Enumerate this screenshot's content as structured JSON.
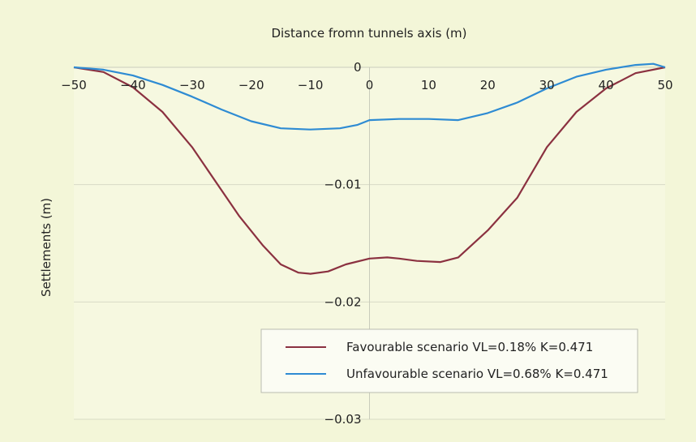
{
  "chart_data": {
    "type": "line",
    "title": "Distance fromn tunnels axis (m)",
    "xlabel": "Distance fromn tunnels axis (m)",
    "ylabel": "Settlements (m)",
    "xlim": [
      -50,
      50
    ],
    "ylim": [
      -0.03,
      0
    ],
    "x_ticks": [
      -50,
      -40,
      -30,
      -20,
      -10,
      0,
      10,
      20,
      30,
      40,
      50
    ],
    "y_ticks": [
      0,
      -0.01,
      -0.02,
      -0.03
    ],
    "y_tick_labels": [
      "0",
      "−0.01",
      "−0.02",
      "−0.03"
    ],
    "grid": true,
    "legend_position": "bottom-right",
    "series": [
      {
        "name": "Favourable scenario VL=0.18% K=0.471",
        "color": "#8b3140",
        "x": [
          -50,
          -45,
          -40,
          -35,
          -30,
          -25,
          -22,
          -18,
          -15,
          -12,
          -10,
          -7,
          -4,
          0,
          3,
          5,
          8,
          12,
          15,
          20,
          25,
          30,
          35,
          40,
          45,
          50
        ],
        "y": [
          0,
          -0.0004,
          -0.0017,
          -0.0038,
          -0.0068,
          -0.0105,
          -0.0127,
          -0.0152,
          -0.0168,
          -0.0175,
          -0.0176,
          -0.0174,
          -0.0168,
          -0.0163,
          -0.0162,
          -0.0163,
          -0.0165,
          -0.0166,
          -0.0162,
          -0.0139,
          -0.0111,
          -0.0068,
          -0.0038,
          -0.0018,
          -0.0005,
          0
        ]
      },
      {
        "name": "Unfavourable scenario VL=0.68% K=0.471",
        "color": "#2e8bd3",
        "x": [
          -50,
          -45,
          -40,
          -35,
          -30,
          -25,
          -20,
          -15,
          -10,
          -5,
          -2,
          0,
          5,
          10,
          15,
          20,
          25,
          30,
          35,
          40,
          45,
          48,
          50
        ],
        "y": [
          0,
          -0.0002,
          -0.0007,
          -0.0015,
          -0.0025,
          -0.0036,
          -0.0046,
          -0.0052,
          -0.0053,
          -0.0052,
          -0.0049,
          -0.0045,
          -0.0044,
          -0.0044,
          -0.0045,
          -0.0039,
          -0.003,
          -0.0018,
          -0.0008,
          -0.0002,
          0.0002,
          0.0003,
          0
        ]
      }
    ]
  }
}
